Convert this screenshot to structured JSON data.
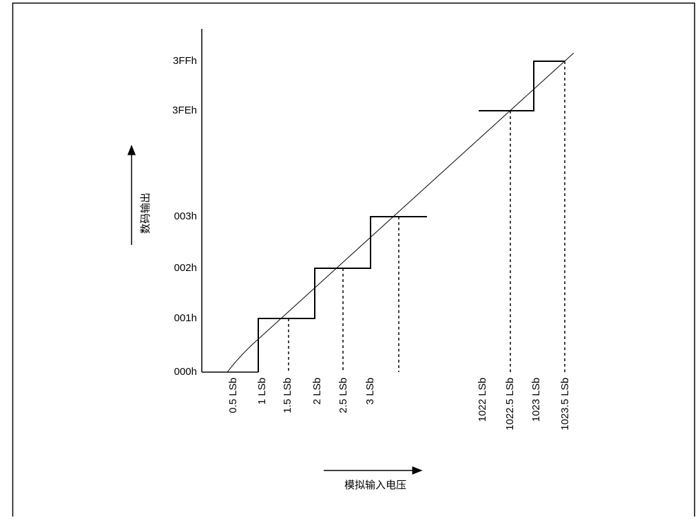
{
  "y_axis": {
    "label": "数码输出",
    "ticks": [
      "3FFh",
      "3FEh",
      "003h",
      "002h",
      "001h",
      "000h"
    ]
  },
  "x_axis": {
    "label": "模拟输入电压",
    "ticks": [
      "0.5 LSb",
      "1 LSb",
      "1.5 LSb",
      "2 LSb",
      "2.5 LSb",
      "3 LSb",
      "1022 LSb",
      "1022.5 LSb",
      "1023 LSb",
      "1023.5 LSb"
    ]
  }
}
